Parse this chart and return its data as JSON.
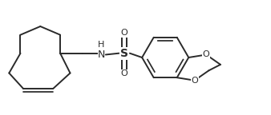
{
  "bg_color": "#ffffff",
  "line_color": "#2a2a2a",
  "text_color": "#2a2a2a",
  "line_width": 1.4,
  "font_size": 8.0,
  "figsize": [
    3.38,
    1.44
  ],
  "dpi": 100,
  "xlim": [
    0.0,
    9.5
  ],
  "ylim": [
    0.3,
    3.7
  ]
}
